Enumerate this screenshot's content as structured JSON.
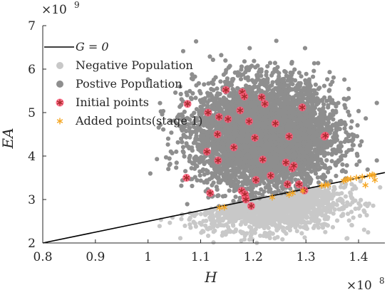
{
  "chart_data": {
    "type": "scatter",
    "xlabel": "H",
    "ylabel": "EA",
    "x_multiplier": {
      "base": "×10",
      "exp": "8"
    },
    "y_multiplier": {
      "base": "×10",
      "exp": "9"
    },
    "xlim": [
      0.8,
      1.45
    ],
    "ylim": [
      2,
      7
    ],
    "x_ticks": [
      "0.8",
      "0.9",
      "1",
      "1.1",
      "1.2",
      "1.3",
      "1.4"
    ],
    "y_ticks": [
      "2",
      "3",
      "4",
      "5",
      "6",
      "7"
    ],
    "legend_position": "top-left",
    "colors": {
      "negative": "#c8c8c8",
      "positive": "#8e8e8e",
      "initial": "#a52a2a",
      "initial_halo": "#ff5a7a",
      "added": "#f5a623",
      "line": "#000000"
    },
    "series": [
      {
        "name": "G = 0",
        "kind": "line",
        "x": [
          0.8,
          1.45
        ],
        "y": [
          2.0,
          3.62
        ]
      },
      {
        "name": "Negative Population",
        "kind": "cloud",
        "center": [
          1.22,
          3.0
        ],
        "spread": [
          0.07,
          0.35
        ],
        "count": 1500
      },
      {
        "name": "Postive Population",
        "kind": "cloud",
        "center": [
          1.22,
          4.5
        ],
        "spread": [
          0.065,
          0.6
        ],
        "count": 5200
      },
      {
        "name": "Initial points",
        "kind": "points",
        "x": [
          1.075,
          1.073,
          1.112,
          1.114,
          1.118,
          1.132,
          1.133,
          1.135,
          1.148,
          1.152,
          1.163,
          1.175,
          1.178,
          1.179,
          1.183,
          1.185,
          1.192,
          1.196,
          1.203,
          1.205,
          1.216,
          1.218,
          1.222,
          1.233,
          1.242,
          1.262,
          1.265,
          1.268,
          1.274,
          1.277,
          1.287,
          1.293,
          1.297,
          1.335,
          1.337,
          1.184,
          1.186
        ],
        "y": [
          5.2,
          3.5,
          4.1,
          5.0,
          3.15,
          4.5,
          3.9,
          4.9,
          5.52,
          4.85,
          4.2,
          5.05,
          3.2,
          5.47,
          5.37,
          3.05,
          4.8,
          2.85,
          4.42,
          3.45,
          5.35,
          3.92,
          5.2,
          3.55,
          4.75,
          3.85,
          3.35,
          4.45,
          3.72,
          3.78,
          3.35,
          5.12,
          3.21,
          4.45,
          4.47,
          3.12,
          3.0
        ]
      },
      {
        "name": "Added points(stage 1)",
        "kind": "points",
        "x": [
          1.136,
          1.145,
          1.236,
          1.275,
          1.294,
          1.33,
          1.337,
          1.342,
          1.372,
          1.376,
          1.379,
          1.385,
          1.396,
          1.407,
          1.413,
          1.421,
          1.426,
          1.429,
          1.431,
          1.268
        ],
        "y": [
          2.81,
          2.82,
          3.05,
          3.15,
          3.2,
          3.32,
          3.33,
          3.34,
          3.43,
          3.45,
          3.47,
          3.48,
          3.5,
          3.52,
          3.33,
          3.55,
          3.57,
          3.56,
          3.45,
          3.11
        ]
      }
    ]
  }
}
